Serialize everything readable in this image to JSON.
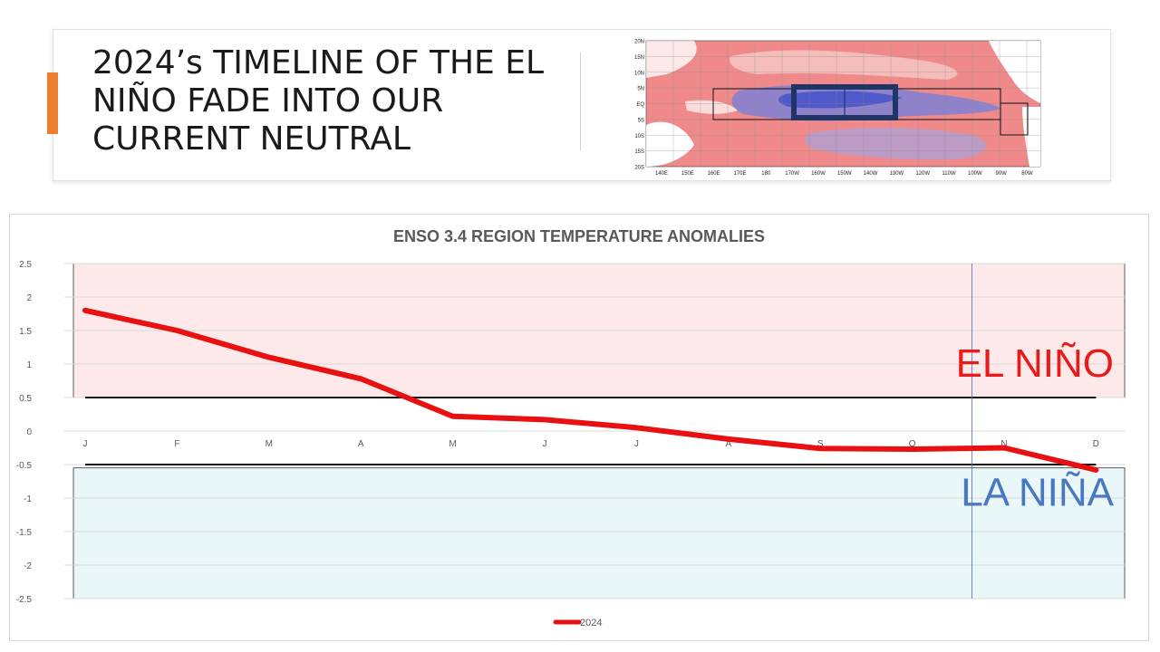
{
  "slide": {
    "title": "2024’s TIMELINE OF THE EL NIÑO FADE INTO OUR CURRENT NEUTRAL",
    "accent_color": "#ED7D31"
  },
  "map": {
    "lat_labels": [
      "20N",
      "15N",
      "10N",
      "5N",
      "EQ",
      "5S",
      "10S",
      "15S",
      "20S"
    ],
    "lon_labels": [
      "140E",
      "150E",
      "160E",
      "170E",
      "180",
      "170W",
      "160W",
      "150W",
      "140W",
      "130W",
      "120W",
      "110W",
      "100W",
      "90W",
      "80W"
    ],
    "warm_color": "#f08a8a",
    "cool_color": "#6f7fe0",
    "box_color": "#1f3566"
  },
  "chart_data": {
    "type": "line",
    "title": "ENSO 3.4 REGION TEMPERATURE ANOMALIES",
    "categories": [
      "J",
      "F",
      "M",
      "A",
      "M",
      "J",
      "J",
      "A",
      "S",
      "O",
      "N",
      "D"
    ],
    "series": [
      {
        "name": "2024",
        "values": [
          1.8,
          1.5,
          1.1,
          0.78,
          0.22,
          0.17,
          0.05,
          -0.12,
          -0.26,
          -0.27,
          -0.25,
          -0.58
        ],
        "color": "#e81010"
      }
    ],
    "ylim": [
      -2.5,
      2.5
    ],
    "yticks": [
      "2.5",
      "2",
      "1.5",
      "1",
      "0.5",
      "0",
      "-0.5",
      "-1",
      "-1.5",
      "-2",
      "-2.5"
    ],
    "grid": true,
    "legend": "bottom",
    "thresholds": [
      0.5,
      -0.5
    ],
    "regions": [
      {
        "label": "EL NIÑO",
        "from": 0.5,
        "to": 2.5,
        "fill": "#fde9ea",
        "text_color": "#e81a1a"
      },
      {
        "label": "LA NIÑA",
        "from": -2.5,
        "to": -0.55,
        "fill": "#eaf7f9",
        "text_color": "#4a78c0"
      }
    ],
    "current_marker_month_index": 9.65
  }
}
